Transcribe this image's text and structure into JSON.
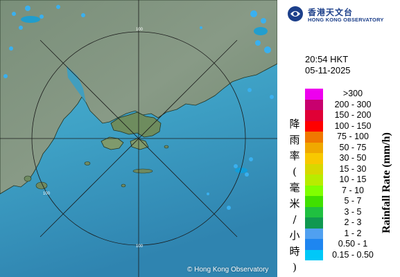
{
  "header": {
    "org_name_cn": "香港天文台",
    "org_name_en": "HONG KONG OBSERVATORY"
  },
  "timestamp": {
    "time": "20:54 HKT",
    "date": "05-11-2025"
  },
  "map": {
    "range_rings": [
      "100",
      "100",
      "100"
    ],
    "copyright": "© Hong Kong Observatory"
  },
  "legend": {
    "title_cn": [
      "降",
      "雨",
      "率",
      "(",
      "毫",
      "米",
      "/",
      "小",
      "時",
      ")"
    ],
    "title_en": "Rainfall Rate (mm/h)",
    "items": [
      {
        "label": ">300",
        "color": "#ee00ee"
      },
      {
        "label": "200 - 300",
        "color": "#c8006e"
      },
      {
        "label": "150 - 200",
        "color": "#e00036"
      },
      {
        "label": "100 - 150",
        "color": "#ff0000"
      },
      {
        "label": "75 - 100",
        "color": "#f07800"
      },
      {
        "label": "50 - 75",
        "color": "#f0a800"
      },
      {
        "label": "30 - 50",
        "color": "#f8c800"
      },
      {
        "label": "15 - 30",
        "color": "#d8d800"
      },
      {
        "label": "10 - 15",
        "color": "#b8ec00"
      },
      {
        "label": "7 - 10",
        "color": "#80ff00"
      },
      {
        "label": "5 - 7",
        "color": "#40e000"
      },
      {
        "label": "3 - 5",
        "color": "#20c040"
      },
      {
        "label": "2 - 3",
        "color": "#109850"
      },
      {
        "label": "1 - 2",
        "color": "#50a0f0"
      },
      {
        "label": "0.50 - 1",
        "color": "#1e86f0"
      },
      {
        "label": "0.15 - 0.50",
        "color": "#00c8f8"
      }
    ]
  }
}
